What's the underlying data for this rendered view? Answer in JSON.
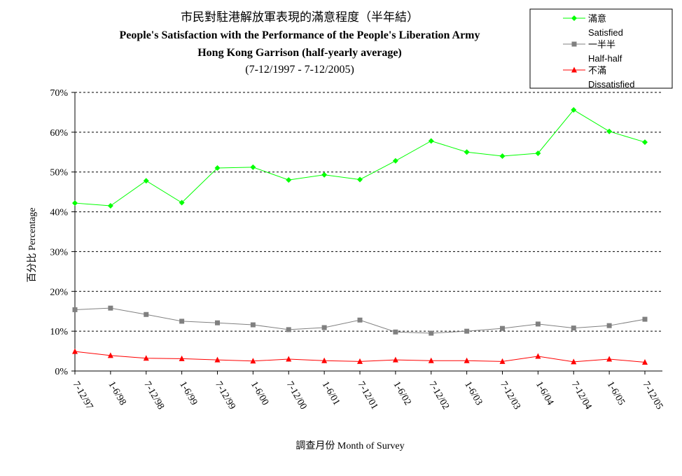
{
  "chart_data": {
    "type": "line",
    "title": "市民對駐港解放軍表現的滿意程度（半年結）",
    "subtitle": [
      "People's Satisfaction with the Performance of the People's Liberation Army",
      "Hong Kong Garrison  (half-yearly average)",
      "(7-12/1997 - 7-12/2005)"
    ],
    "xlabel": "調查月份 Month of Survey",
    "ylabel": "百分比 Percentage",
    "ylim": [
      0,
      70
    ],
    "yticks": [
      0,
      10,
      20,
      30,
      40,
      50,
      60,
      70
    ],
    "ytick_labels": [
      "0%",
      "10%",
      "20%",
      "30%",
      "40%",
      "50%",
      "60%",
      "70%"
    ],
    "grid": "horizontal-dashed",
    "legend_position": "top-right",
    "categories": [
      "7-12/97",
      "1-6/98",
      "7-12/98",
      "1-6/99",
      "7-12/99",
      "1-6/00",
      "7-12/00",
      "1-6/01",
      "7-12/01",
      "1-6/02",
      "7-12/02",
      "1-6/03",
      "7-12/03",
      "1-6/04",
      "7-12/04",
      "1-6/05",
      "7-12/05"
    ],
    "series": [
      {
        "name": "滿意",
        "name_en": "Satisfied",
        "color": "#00ff00",
        "marker": "diamond",
        "values": [
          42.2,
          41.5,
          47.8,
          42.3,
          51.0,
          51.2,
          48.0,
          49.3,
          48.1,
          52.8,
          57.8,
          55.0,
          54.0,
          54.7,
          65.6,
          60.2,
          57.5
        ]
      },
      {
        "name": "一半半",
        "name_en": "Half-half",
        "color": "#808080",
        "marker": "square",
        "values": [
          15.4,
          15.8,
          14.2,
          12.5,
          12.1,
          11.6,
          10.4,
          10.9,
          12.8,
          9.8,
          9.5,
          10.0,
          10.7,
          11.8,
          10.8,
          11.4,
          13.0
        ]
      },
      {
        "name": "不滿",
        "name_en": "Dissatisfied",
        "color": "#ff0000",
        "marker": "triangle",
        "values": [
          4.9,
          3.9,
          3.2,
          3.1,
          2.8,
          2.5,
          3.0,
          2.6,
          2.4,
          2.8,
          2.6,
          2.6,
          2.4,
          3.7,
          2.3,
          3.0,
          2.2
        ]
      }
    ]
  }
}
